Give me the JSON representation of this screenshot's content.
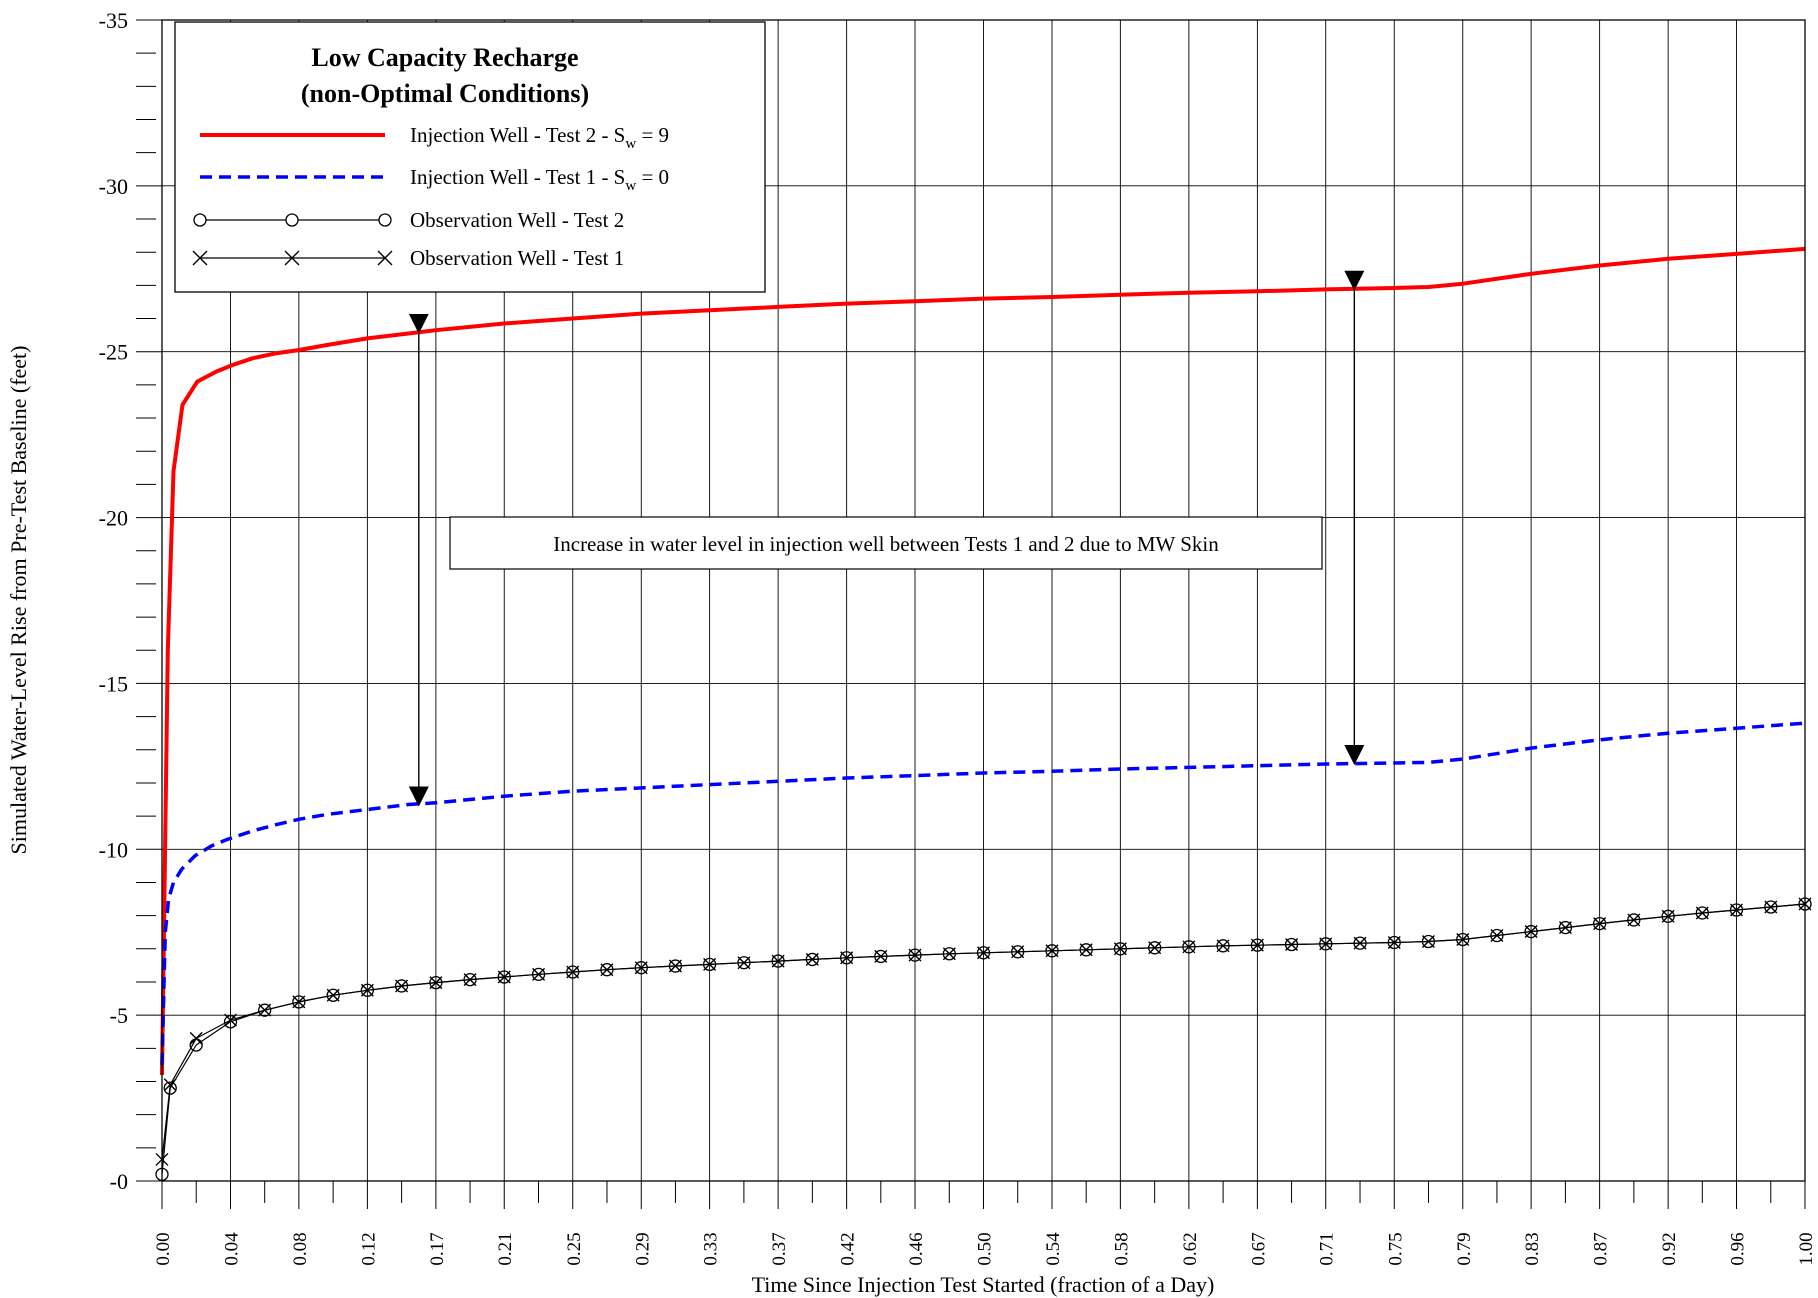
{
  "chart_data": {
    "type": "line",
    "title": "",
    "xlabel": "Time Since Injection Test Started (fraction of a Day)",
    "ylabel": "Simulated Water-Level Rise from Pre-Test Baseline (feet)",
    "xlim": [
      0,
      1
    ],
    "ylim": [
      0,
      -35
    ],
    "y_axis_inverted": true,
    "grid": true,
    "legend_position": "top-left",
    "y_ticks": [
      {
        "value": -35,
        "label": "-35"
      },
      {
        "value": -30,
        "label": "-30"
      },
      {
        "value": -25,
        "label": "-25"
      },
      {
        "value": -20,
        "label": "-20"
      },
      {
        "value": -15,
        "label": "-15"
      },
      {
        "value": -10,
        "label": "-10"
      },
      {
        "value": -5,
        "label": "-5"
      },
      {
        "value": 0,
        "label": "-0"
      }
    ],
    "x_ticks": [
      {
        "value": 0.0,
        "label": "0.00"
      },
      {
        "value": 0.0417,
        "label": "0.04"
      },
      {
        "value": 0.0833,
        "label": "0.08"
      },
      {
        "value": 0.125,
        "label": "0.12"
      },
      {
        "value": 0.1667,
        "label": "0.17"
      },
      {
        "value": 0.2083,
        "label": "0.21"
      },
      {
        "value": 0.25,
        "label": "0.25"
      },
      {
        "value": 0.2917,
        "label": "0.29"
      },
      {
        "value": 0.3333,
        "label": "0.33"
      },
      {
        "value": 0.375,
        "label": "0.37"
      },
      {
        "value": 0.4167,
        "label": "0.42"
      },
      {
        "value": 0.4583,
        "label": "0.46"
      },
      {
        "value": 0.5,
        "label": "0.50"
      },
      {
        "value": 0.5417,
        "label": "0.54"
      },
      {
        "value": 0.5833,
        "label": "0.58"
      },
      {
        "value": 0.625,
        "label": "0.62"
      },
      {
        "value": 0.6667,
        "label": "0.67"
      },
      {
        "value": 0.7083,
        "label": "0.71"
      },
      {
        "value": 0.75,
        "label": "0.75"
      },
      {
        "value": 0.7917,
        "label": "0.79"
      },
      {
        "value": 0.8333,
        "label": "0.83"
      },
      {
        "value": 0.875,
        "label": "0.87"
      },
      {
        "value": 0.9167,
        "label": "0.92"
      },
      {
        "value": 0.9583,
        "label": "0.96"
      },
      {
        "value": 1.0,
        "label": "1.00"
      }
    ],
    "legend": {
      "title_line1": "Low Capacity Recharge",
      "title_line2": "(non-Optimal Conditions)"
    },
    "series": [
      {
        "name_prefix": "Injection Well - Test 2 - S",
        "name_sub": "w",
        "name_suffix": " = 9",
        "color": "#ff0000",
        "style": "solid",
        "x": [
          0.0,
          0.0035,
          0.007,
          0.0125,
          0.0215,
          0.033,
          0.043,
          0.055,
          0.069,
          0.083,
          0.1,
          0.125,
          0.15,
          0.1667,
          0.2083,
          0.25,
          0.2917,
          0.3333,
          0.375,
          0.4167,
          0.4583,
          0.5,
          0.5417,
          0.5833,
          0.625,
          0.6667,
          0.7083,
          0.75,
          0.7708,
          0.7917,
          0.8333,
          0.875,
          0.9167,
          0.9583,
          1.0
        ],
        "y": [
          -3.2,
          -16.0,
          -21.4,
          -23.4,
          -24.1,
          -24.4,
          -24.6,
          -24.8,
          -24.95,
          -25.05,
          -25.2,
          -25.4,
          -25.55,
          -25.65,
          -25.85,
          -26.0,
          -26.15,
          -26.25,
          -26.35,
          -26.45,
          -26.52,
          -26.6,
          -26.65,
          -26.72,
          -26.78,
          -26.82,
          -26.88,
          -26.92,
          -26.95,
          -27.05,
          -27.35,
          -27.6,
          -27.8,
          -27.95,
          -28.1
        ]
      },
      {
        "name_prefix": "Injection Well - Test 1 - S",
        "name_sub": "w",
        "name_suffix": " = 0",
        "color": "#0000ff",
        "style": "dashed",
        "x": [
          0.0,
          0.002,
          0.004,
          0.007,
          0.012,
          0.02,
          0.03,
          0.04,
          0.055,
          0.07,
          0.083,
          0.1,
          0.125,
          0.15,
          0.1667,
          0.2083,
          0.25,
          0.2917,
          0.3333,
          0.375,
          0.4167,
          0.4583,
          0.5,
          0.5417,
          0.5833,
          0.625,
          0.6667,
          0.7083,
          0.75,
          0.7708,
          0.7917,
          0.8333,
          0.875,
          0.9167,
          0.9583,
          1.0
        ],
        "y": [
          -3.5,
          -7.5,
          -8.5,
          -9.0,
          -9.4,
          -9.8,
          -10.1,
          -10.3,
          -10.55,
          -10.75,
          -10.9,
          -11.05,
          -11.2,
          -11.35,
          -11.4,
          -11.6,
          -11.75,
          -11.85,
          -11.95,
          -12.05,
          -12.15,
          -12.22,
          -12.3,
          -12.35,
          -12.42,
          -12.47,
          -12.52,
          -12.57,
          -12.6,
          -12.62,
          -12.72,
          -13.05,
          -13.3,
          -13.5,
          -13.65,
          -13.8
        ]
      },
      {
        "name": "Observation Well - Test 2",
        "color": "#000000",
        "style": "solid",
        "marker": "circle",
        "x": [
          0.0,
          0.005,
          0.0208,
          0.0417,
          0.0625,
          0.0833,
          0.1042,
          0.125,
          0.1458,
          0.1667,
          0.1875,
          0.2083,
          0.2292,
          0.25,
          0.2708,
          0.2917,
          0.3125,
          0.3333,
          0.3542,
          0.375,
          0.3958,
          0.4167,
          0.4375,
          0.4583,
          0.4792,
          0.5,
          0.5208,
          0.5417,
          0.5625,
          0.5833,
          0.6042,
          0.625,
          0.6458,
          0.6667,
          0.6875,
          0.7083,
          0.7292,
          0.75,
          0.7708,
          0.7917,
          0.8125,
          0.8333,
          0.8542,
          0.875,
          0.8958,
          0.9167,
          0.9375,
          0.9583,
          0.9792,
          1.0
        ],
        "y": [
          -0.2,
          -2.8,
          -4.1,
          -4.8,
          -5.15,
          -5.4,
          -5.6,
          -5.75,
          -5.88,
          -5.98,
          -6.07,
          -6.15,
          -6.23,
          -6.3,
          -6.37,
          -6.43,
          -6.48,
          -6.53,
          -6.58,
          -6.63,
          -6.68,
          -6.73,
          -6.77,
          -6.81,
          -6.85,
          -6.88,
          -6.91,
          -6.94,
          -6.97,
          -7.0,
          -7.03,
          -7.06,
          -7.09,
          -7.11,
          -7.13,
          -7.15,
          -7.17,
          -7.19,
          -7.22,
          -7.28,
          -7.4,
          -7.52,
          -7.64,
          -7.76,
          -7.87,
          -7.98,
          -8.08,
          -8.17,
          -8.26,
          -8.35
        ]
      },
      {
        "name": "Observation Well - Test 1",
        "color": "#000000",
        "style": "solid",
        "marker": "x",
        "x": [
          0.0,
          0.005,
          0.0208,
          0.0417,
          0.0625,
          0.0833,
          0.1042,
          0.125,
          0.1458,
          0.1667,
          0.1875,
          0.2083,
          0.2292,
          0.25,
          0.2708,
          0.2917,
          0.3125,
          0.3333,
          0.3542,
          0.375,
          0.3958,
          0.4167,
          0.4375,
          0.4583,
          0.4792,
          0.5,
          0.5208,
          0.5417,
          0.5625,
          0.5833,
          0.6042,
          0.625,
          0.6458,
          0.6667,
          0.6875,
          0.7083,
          0.7292,
          0.75,
          0.7708,
          0.7917,
          0.8125,
          0.8333,
          0.8542,
          0.875,
          0.8958,
          0.9167,
          0.9375,
          0.9583,
          0.9792,
          1.0
        ],
        "y": [
          -0.65,
          -2.9,
          -4.3,
          -4.85,
          -5.15,
          -5.4,
          -5.6,
          -5.75,
          -5.88,
          -5.98,
          -6.07,
          -6.15,
          -6.23,
          -6.3,
          -6.37,
          -6.43,
          -6.48,
          -6.53,
          -6.58,
          -6.63,
          -6.68,
          -6.73,
          -6.77,
          -6.81,
          -6.85,
          -6.88,
          -6.91,
          -6.94,
          -6.97,
          -7.0,
          -7.03,
          -7.06,
          -7.09,
          -7.11,
          -7.13,
          -7.15,
          -7.17,
          -7.19,
          -7.22,
          -7.28,
          -7.4,
          -7.52,
          -7.64,
          -7.76,
          -7.87,
          -7.98,
          -8.08,
          -8.17,
          -8.26,
          -8.35
        ]
      }
    ],
    "annotations": [
      {
        "text": "Increase in water level in injection well between Tests 1 and 2 due to MW Skin",
        "arrows": [
          {
            "x": 0.1563,
            "from": -25.6,
            "to": -11.35
          },
          {
            "x": 0.7257,
            "from": -26.9,
            "to": -12.6
          }
        ]
      }
    ]
  }
}
